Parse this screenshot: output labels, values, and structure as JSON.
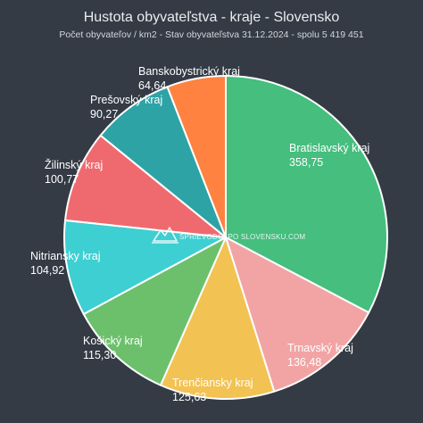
{
  "chart_data": {
    "type": "pie",
    "title": "Hustota obyvateľstva - kraje - Slovensko",
    "subtitle": "Počet obyvateľov / km2 - Stav obyvateľstva 31.12.2024 - spolu 5 419 451",
    "start_angle_deg": 0,
    "direction": "clockwise",
    "slices": [
      {
        "label": "Bratislavský kraj",
        "value": 358.75,
        "value_text": "358,75",
        "color": "#45be7e"
      },
      {
        "label": "Trnavský kraj",
        "value": 136.48,
        "value_text": "136,48",
        "color": "#f2a4a4"
      },
      {
        "label": "Trenčiansky kraj",
        "value": 125.63,
        "value_text": "125,63",
        "color": "#f2c253"
      },
      {
        "label": "Košický kraj",
        "value": 115.3,
        "value_text": "115,30",
        "color": "#6cc06c"
      },
      {
        "label": "Nitriansky kraj",
        "value": 104.92,
        "value_text": "104,92",
        "color": "#3ecfd2"
      },
      {
        "label": "Žilinský kraj",
        "value": 100.77,
        "value_text": "100,77",
        "color": "#ef6a6f"
      },
      {
        "label": "Prešovský kraj",
        "value": 90.27,
        "value_text": "90,27",
        "color": "#2ea3a6"
      },
      {
        "label": "Banskobystrický kraj",
        "value": 64.64,
        "value_text": "64,64",
        "color": "#ff8240"
      }
    ]
  },
  "watermark": {
    "text": "SPRIEVODCAPO SLOVENSKU.COM",
    "icon": "mountain-icon"
  }
}
